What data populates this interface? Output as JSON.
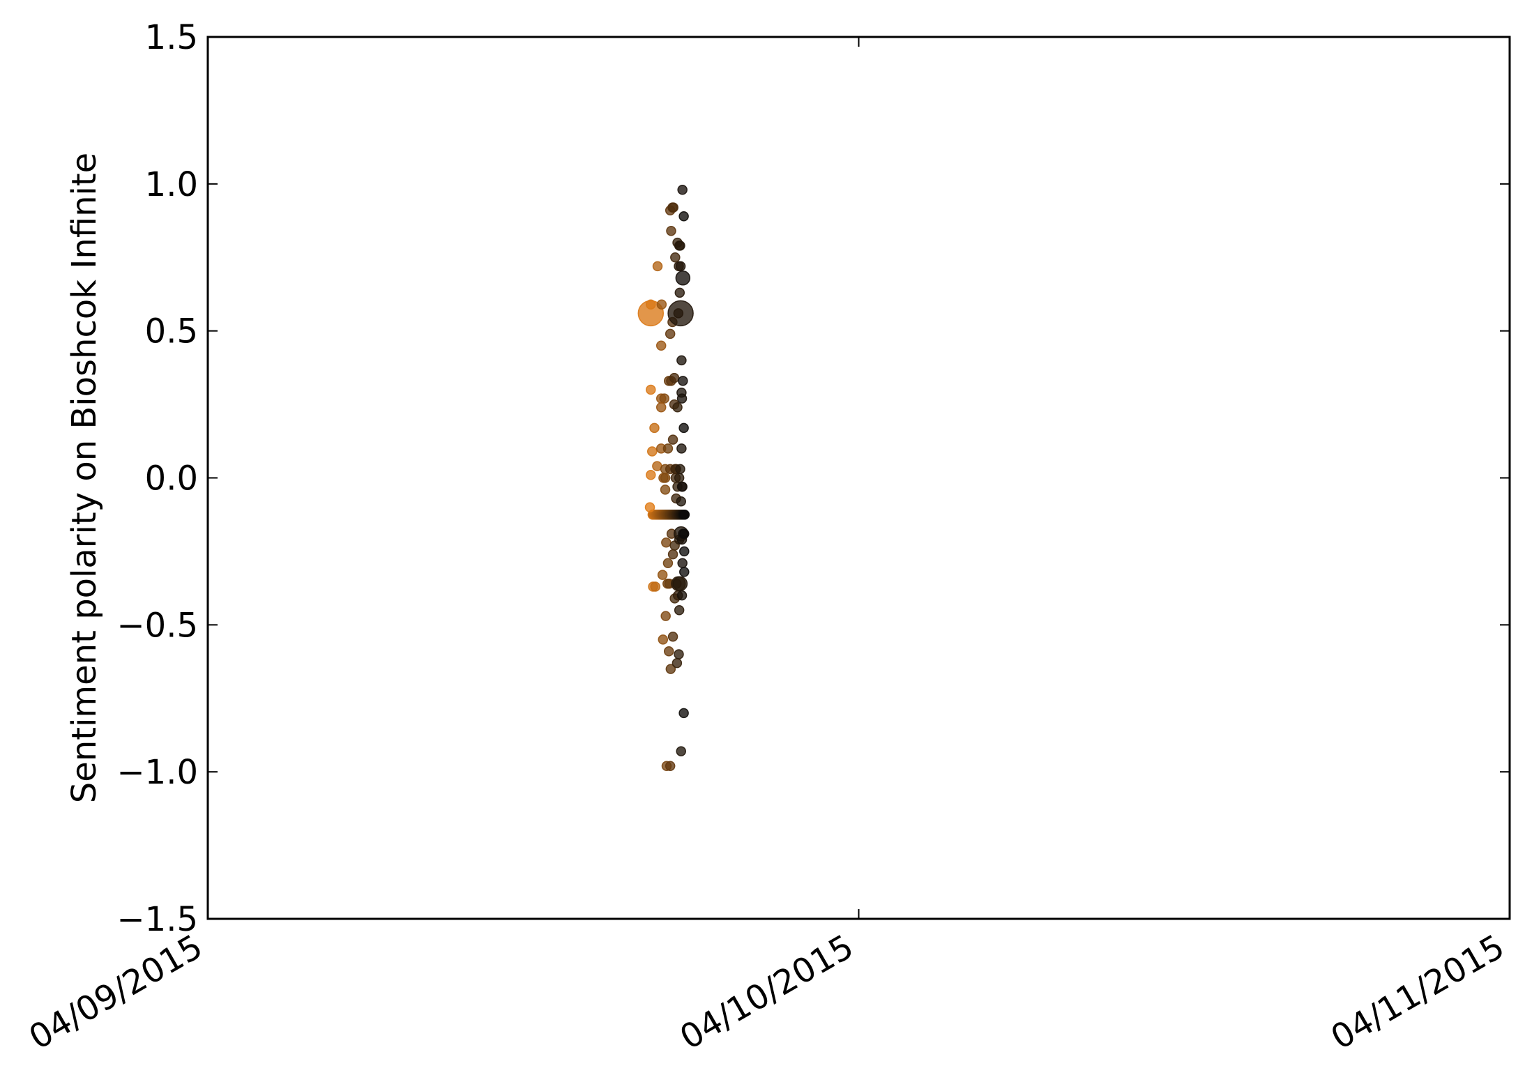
{
  "chart_data": {
    "type": "scatter",
    "title": "",
    "xlabel": "",
    "ylabel": "Sentiment polarity on Bioshcok Infinite",
    "xlim": [
      "2015-04-09 00:00",
      "2015-04-11 00:00"
    ],
    "ylim": [
      -1.5,
      1.5
    ],
    "x_ticks": [
      "04/09/2015",
      "04/10/2015",
      "04/11/2015"
    ],
    "y_ticks": [
      "1.5",
      "1.0",
      "0.5",
      "0.0",
      "−0.5",
      "−1.0",
      "−1.5"
    ],
    "grid": false,
    "legend": "none",
    "color_gradient": [
      "#e07c17",
      "#0a0a0a"
    ],
    "marker_opacity": 0.78,
    "points": [
      {
        "x": "2015-04-09 16:20",
        "y": 0.56,
        "size": 3
      },
      {
        "x": "2015-04-09 16:20",
        "y": 0.59,
        "size": 1
      },
      {
        "x": "2015-04-09 16:35",
        "y": 0.72,
        "size": 1
      },
      {
        "x": "2015-04-09 16:20",
        "y": 0.3,
        "size": 1
      },
      {
        "x": "2015-04-09 16:28",
        "y": 0.17,
        "size": 1
      },
      {
        "x": "2015-04-09 16:23",
        "y": 0.09,
        "size": 1
      },
      {
        "x": "2015-04-09 16:20",
        "y": 0.01,
        "size": 1
      },
      {
        "x": "2015-04-09 16:34",
        "y": 0.04,
        "size": 1
      },
      {
        "x": "2015-04-09 16:18",
        "y": -0.1,
        "size": 1
      },
      {
        "x": "2015-04-09 16:25",
        "y": -0.37,
        "size": 1
      },
      {
        "x": "2015-04-09 16:30",
        "y": -0.37,
        "size": 1
      },
      {
        "x": "2015-04-09 16:44",
        "y": 0.59,
        "size": 1
      },
      {
        "x": "2015-04-09 16:43",
        "y": 0.45,
        "size": 1
      },
      {
        "x": "2015-04-09 16:43",
        "y": 0.27,
        "size": 1
      },
      {
        "x": "2015-04-09 16:50",
        "y": 0.27,
        "size": 1
      },
      {
        "x": "2015-04-09 16:43",
        "y": 0.24,
        "size": 1
      },
      {
        "x": "2015-04-09 16:43",
        "y": 0.1,
        "size": 1
      },
      {
        "x": "2015-04-09 16:48",
        "y": 0.0,
        "size": 1
      },
      {
        "x": "2015-04-09 16:52",
        "y": 0.03,
        "size": 1
      },
      {
        "x": "2015-04-09 16:52",
        "y": 0.0,
        "size": 1
      },
      {
        "x": "2015-04-09 16:52",
        "y": -0.04,
        "size": 1
      },
      {
        "x": "2015-04-09 16:46",
        "y": -0.33,
        "size": 1
      },
      {
        "x": "2015-04-09 16:47",
        "y": -0.55,
        "size": 1
      },
      {
        "x": "2015-04-09 16:54",
        "y": -0.22,
        "size": 1
      },
      {
        "x": "2015-04-09 16:53",
        "y": -0.47,
        "size": 1
      },
      {
        "x": "2015-04-09 16:57",
        "y": -0.36,
        "size": 1
      },
      {
        "x": "2015-04-09 16:58",
        "y": -0.29,
        "size": 1
      },
      {
        "x": "2015-04-09 16:55",
        "y": -0.98,
        "size": 1
      },
      {
        "x": "2015-04-09 16:58",
        "y": 0.1,
        "size": 1
      },
      {
        "x": "2015-04-09 17:00",
        "y": 0.33,
        "size": 1
      },
      {
        "x": "2015-04-09 17:00",
        "y": -0.59,
        "size": 1
      },
      {
        "x": "2015-04-09 17:01",
        "y": -0.36,
        "size": 1
      },
      {
        "x": "2015-04-09 17:03",
        "y": 0.03,
        "size": 1
      },
      {
        "x": "2015-04-09 17:03",
        "y": 0.91,
        "size": 1
      },
      {
        "x": "2015-04-09 17:03",
        "y": 0.49,
        "size": 1
      },
      {
        "x": "2015-04-09 17:04",
        "y": -0.65,
        "size": 1
      },
      {
        "x": "2015-04-09 17:03",
        "y": -0.98,
        "size": 1
      },
      {
        "x": "2015-04-09 17:05",
        "y": 0.84,
        "size": 1
      },
      {
        "x": "2015-04-09 17:05",
        "y": 0.33,
        "size": 1
      },
      {
        "x": "2015-04-09 17:06",
        "y": -0.19,
        "size": 1
      },
      {
        "x": "2015-04-09 17:08",
        "y": 0.92,
        "size": 1
      },
      {
        "x": "2015-04-09 17:08",
        "y": 0.53,
        "size": 1
      },
      {
        "x": "2015-04-09 17:09",
        "y": 0.13,
        "size": 1
      },
      {
        "x": "2015-04-09 17:09",
        "y": -0.26,
        "size": 1
      },
      {
        "x": "2015-04-09 17:09",
        "y": -0.54,
        "size": 1
      },
      {
        "x": "2015-04-09 17:10",
        "y": 0.92,
        "size": 1
      },
      {
        "x": "2015-04-09 17:12",
        "y": 0.34,
        "size": 1
      },
      {
        "x": "2015-04-09 17:12",
        "y": 0.25,
        "size": 1
      },
      {
        "x": "2015-04-09 17:13",
        "y": -0.23,
        "size": 1
      },
      {
        "x": "2015-04-09 17:13",
        "y": -0.41,
        "size": 1
      },
      {
        "x": "2015-04-09 17:14",
        "y": 0.75,
        "size": 1
      },
      {
        "x": "2015-04-09 17:14",
        "y": 0.03,
        "size": 1
      },
      {
        "x": "2015-04-09 17:15",
        "y": 0.0,
        "size": 1
      },
      {
        "x": "2015-04-09 17:16",
        "y": 0.03,
        "size": 1
      },
      {
        "x": "2015-04-09 17:16",
        "y": -0.07,
        "size": 1
      },
      {
        "x": "2015-04-09 17:17",
        "y": -0.36,
        "size": 1
      },
      {
        "x": "2015-04-09 17:18",
        "y": -0.63,
        "size": 1
      },
      {
        "x": "2015-04-09 17:19",
        "y": 0.8,
        "size": 1
      },
      {
        "x": "2015-04-09 17:19",
        "y": 0.24,
        "size": 1
      },
      {
        "x": "2015-04-09 17:19",
        "y": -0.03,
        "size": 1
      },
      {
        "x": "2015-04-09 17:20",
        "y": -0.4,
        "size": 1
      },
      {
        "x": "2015-04-09 17:21",
        "y": -0.36,
        "size": 2
      },
      {
        "x": "2015-04-09 17:21",
        "y": 0.56,
        "size": 1
      },
      {
        "x": "2015-04-09 17:22",
        "y": 0.72,
        "size": 1
      },
      {
        "x": "2015-04-09 17:22",
        "y": -0.6,
        "size": 1
      },
      {
        "x": "2015-04-09 17:23",
        "y": 0.79,
        "size": 1
      },
      {
        "x": "2015-04-09 17:23",
        "y": 0.0,
        "size": 1
      },
      {
        "x": "2015-04-09 17:23",
        "y": -0.21,
        "size": 1
      },
      {
        "x": "2015-04-09 17:23",
        "y": -0.45,
        "size": 1
      },
      {
        "x": "2015-04-09 17:24",
        "y": 0.63,
        "size": 1
      },
      {
        "x": "2015-04-09 17:25",
        "y": 0.79,
        "size": 1
      },
      {
        "x": "2015-04-09 17:25",
        "y": 0.03,
        "size": 1
      },
      {
        "x": "2015-04-09 17:25",
        "y": -0.36,
        "size": 2
      },
      {
        "x": "2015-04-09 17:26",
        "y": 0.72,
        "size": 1
      },
      {
        "x": "2015-04-09 17:26",
        "y": 0.56,
        "size": 3
      },
      {
        "x": "2015-04-09 17:27",
        "y": -0.19,
        "size": 2
      },
      {
        "x": "2015-04-09 17:27",
        "y": -0.93,
        "size": 1
      },
      {
        "x": "2015-04-09 17:27",
        "y": -0.08,
        "size": 1
      },
      {
        "x": "2015-04-09 17:28",
        "y": 0.4,
        "size": 1
      },
      {
        "x": "2015-04-09 17:28",
        "y": 0.1,
        "size": 1
      },
      {
        "x": "2015-04-09 17:28",
        "y": 0.29,
        "size": 1
      },
      {
        "x": "2015-04-09 17:29",
        "y": -0.03,
        "size": 1
      },
      {
        "x": "2015-04-09 17:29",
        "y": 0.27,
        "size": 1
      },
      {
        "x": "2015-04-09 17:29",
        "y": -0.21,
        "size": 1
      },
      {
        "x": "2015-04-09 17:29",
        "y": -0.4,
        "size": 1
      },
      {
        "x": "2015-04-09 17:30",
        "y": 0.98,
        "size": 1
      },
      {
        "x": "2015-04-09 17:30",
        "y": -0.03,
        "size": 1
      },
      {
        "x": "2015-04-09 17:30",
        "y": -0.29,
        "size": 1
      },
      {
        "x": "2015-04-09 17:31",
        "y": 0.68,
        "size": 2
      },
      {
        "x": "2015-04-09 17:31",
        "y": 0.33,
        "size": 1
      },
      {
        "x": "2015-04-09 17:31",
        "y": -0.19,
        "size": 1
      },
      {
        "x": "2015-04-09 17:33",
        "y": 0.89,
        "size": 1
      },
      {
        "x": "2015-04-09 17:33",
        "y": 0.17,
        "size": 1
      },
      {
        "x": "2015-04-09 17:33",
        "y": -0.8,
        "size": 1
      },
      {
        "x": "2015-04-09 17:34",
        "y": -0.19,
        "size": 1
      },
      {
        "x": "2015-04-09 17:34",
        "y": -0.25,
        "size": 1
      },
      {
        "x": "2015-04-09 17:34",
        "y": -0.32,
        "size": 1
      }
    ],
    "dense_row": {
      "y": -0.125,
      "x_from": "2015-04-09 16:24",
      "x_to": "2015-04-09 17:35",
      "count": 54,
      "size": 1
    }
  }
}
